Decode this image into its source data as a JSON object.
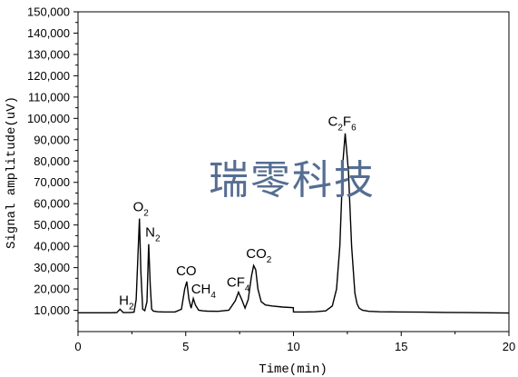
{
  "chart_data": {
    "type": "line",
    "title": "",
    "xlabel": "Time(min)",
    "ylabel": "Signal amplitude(uV)",
    "xlim": [
      0,
      20
    ],
    "ylim": [
      0,
      150000
    ],
    "xticks": [
      0,
      5,
      10,
      15,
      20
    ],
    "xtick_labels": [
      "0",
      "5",
      "10",
      "15",
      "20"
    ],
    "yticks": [
      10000,
      20000,
      30000,
      40000,
      50000,
      60000,
      70000,
      80000,
      90000,
      100000,
      110000,
      120000,
      130000,
      140000,
      150000
    ],
    "ytick_labels": [
      "10,000",
      "20,000",
      "30,000",
      "40,000",
      "50,000",
      "60,000",
      "70,000",
      "80,000",
      "90,000",
      "100,000",
      "110,000",
      "120,000",
      "130,000",
      "140,000",
      "150,000"
    ],
    "grid": false,
    "legend": "none",
    "line_color": "#000000",
    "series": [
      {
        "x": [
          0,
          1.5,
          1.8,
          1.95,
          2.1,
          2.4,
          2.6,
          2.7,
          2.78,
          2.85,
          2.92,
          3.0,
          3.1,
          3.2,
          3.28,
          3.35,
          3.42,
          3.5,
          3.7,
          4.0,
          4.5,
          4.8,
          4.95,
          5.05,
          5.15,
          5.25,
          5.35,
          5.45,
          5.6,
          5.8,
          6.0,
          6.5,
          7.0,
          7.3,
          7.45,
          7.6,
          7.75,
          7.9,
          8.05,
          8.15,
          8.25,
          8.35,
          8.5,
          8.7,
          9.0,
          9.5,
          9.99,
          10.0,
          10.5,
          11.0,
          11.5,
          11.8,
          12.0,
          12.15,
          12.3,
          12.4,
          12.55,
          12.7,
          12.85,
          12.95,
          13.05,
          13.2,
          13.5,
          14.0,
          15.0,
          16.0,
          17.0,
          18.0,
          19.0,
          20.0
        ],
        "y": [
          8800,
          8800,
          8900,
          10500,
          8900,
          8900,
          9100,
          15000,
          35000,
          53000,
          28000,
          10500,
          9800,
          14000,
          41000,
          22000,
          10500,
          9600,
          9300,
          9200,
          9200,
          10500,
          20000,
          23500,
          15000,
          11000,
          15500,
          12500,
          10000,
          9700,
          9600,
          9500,
          10000,
          14500,
          18500,
          15000,
          11000,
          15000,
          26000,
          31000,
          29000,
          20000,
          14000,
          12500,
          12000,
          11500,
          11200,
          9200,
          9200,
          9300,
          9700,
          12000,
          20000,
          40000,
          80000,
          93000,
          75000,
          40000,
          18000,
          13000,
          11000,
          10000,
          9500,
          9300,
          9200,
          9100,
          9000,
          8900,
          8800,
          8700
        ]
      }
    ],
    "annotations": [
      {
        "text": "H",
        "sub": "2",
        "x": 1.9,
        "y": 12500
      },
      {
        "text": "O",
        "sub": "2",
        "x": 2.55,
        "y": 56500
      },
      {
        "text": "N",
        "sub": "2",
        "x": 3.12,
        "y": 44500
      },
      {
        "text": "CO",
        "sub": "",
        "x": 4.55,
        "y": 26500
      },
      {
        "text": "CH",
        "sub": "4",
        "x": 5.25,
        "y": 18000
      },
      {
        "text": "CF",
        "sub": "4",
        "x": 6.9,
        "y": 21000
      },
      {
        "text": "CO",
        "sub": "2",
        "x": 7.8,
        "y": 34500
      },
      {
        "text": "C",
        "sub": "2",
        "text2": "F",
        "sub2": "6",
        "x": 11.6,
        "y": 96500
      }
    ]
  },
  "watermark": "瑞零科技"
}
